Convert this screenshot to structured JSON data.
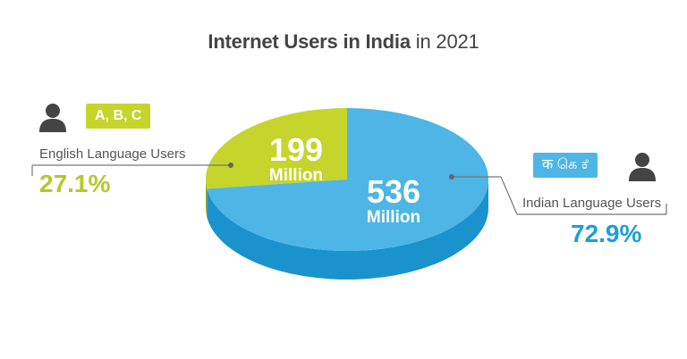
{
  "title": {
    "bold_part": "Internet Users in India",
    "rest": " in 2021"
  },
  "chart_data": {
    "type": "pie",
    "title": "Internet Users in India in 2021",
    "categories": [
      "English Language Users",
      "Indian Language Users"
    ],
    "values": [
      199,
      536
    ],
    "value_labels": [
      "199",
      "536"
    ],
    "value_unit": "Million",
    "percent_labels": [
      "27.1%",
      "72.9%"
    ],
    "percentages": [
      27.1,
      72.9
    ],
    "colors": [
      "#c5d52b",
      "#4db6e6"
    ],
    "side_colors": [
      "#9aab12",
      "#1a93cc"
    ]
  },
  "callouts": {
    "english": {
      "bubble_text": "A, B, C",
      "label": "English Language Users",
      "percent": "27.1%",
      "color": "#b5c82a"
    },
    "indian": {
      "bubble_text": "क கெ ಕೆ",
      "label": "Indian Language Users",
      "percent": "72.9%",
      "color": "#1a9fdc"
    }
  },
  "icons": [
    "user-icon",
    "user-icon"
  ]
}
